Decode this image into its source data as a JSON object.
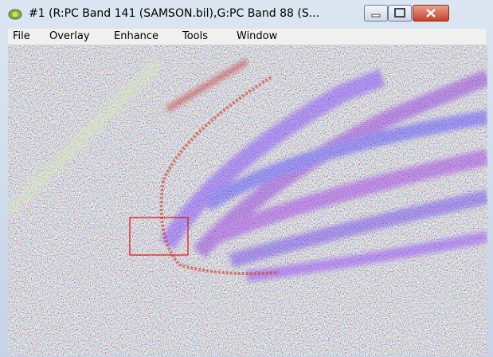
{
  "window": {
    "title": "#1 (R:PC Band 141 (SAMSON.bil),G:PC Band 88 (S..."
  },
  "menu": [
    "File",
    "Overlay",
    "Enhance",
    "Tools",
    "Window"
  ]
}
